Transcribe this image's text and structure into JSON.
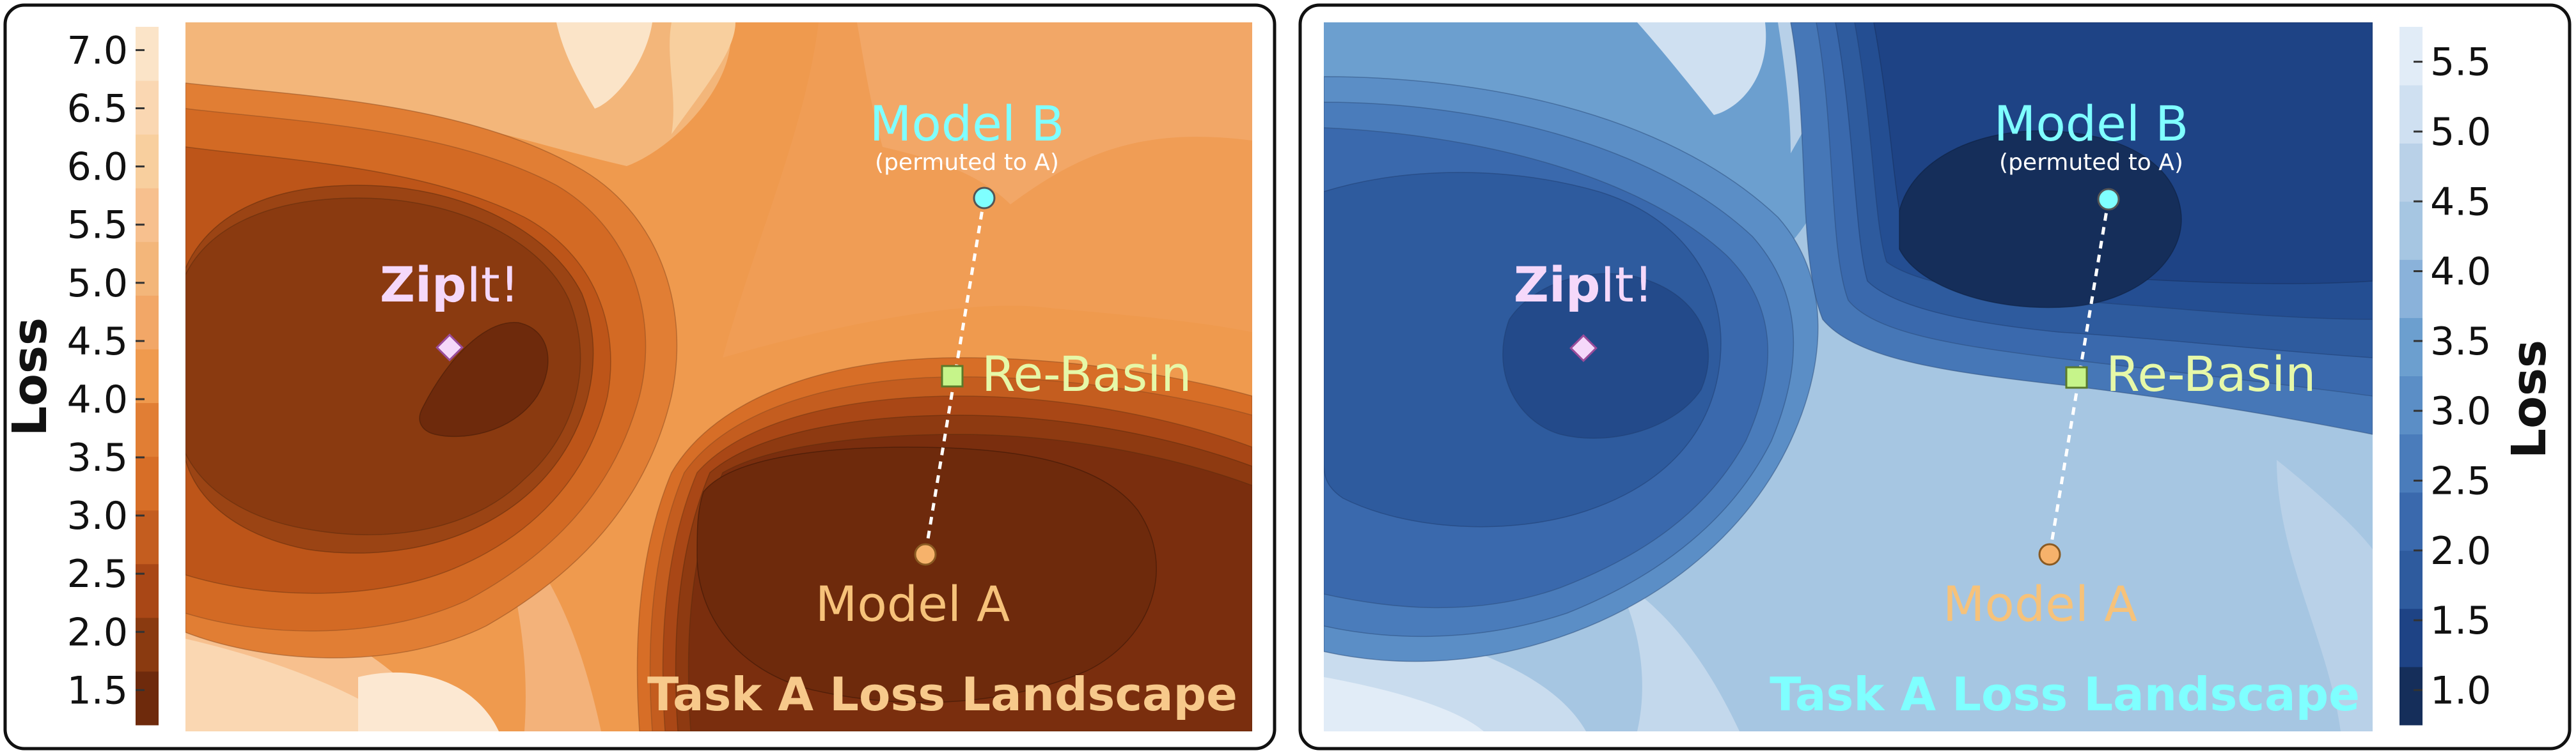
{
  "chart_data": [
    {
      "type": "contour",
      "title": "Task A Loss Landscape",
      "colorbar": {
        "label": "Loss",
        "position": "left",
        "range": [
          1.2,
          7.2
        ],
        "ticks": [
          "7.0",
          "6.5",
          "6.0",
          "5.5",
          "5.0",
          "4.5",
          "4.0",
          "3.5",
          "3.0",
          "2.5",
          "2.0",
          "1.5"
        ],
        "colormap": "orange"
      },
      "points": [
        {
          "name": "Model A",
          "color": "#F6B26B",
          "marker": "circle"
        },
        {
          "name": "Model B",
          "sublabel": "(permuted to A)",
          "color": "#7FFFFF",
          "marker": "circle"
        },
        {
          "name": "Re-Basin",
          "color": "#C6F48A",
          "marker": "square"
        },
        {
          "name_bold": "Zip",
          "name_rest": "It!",
          "color": "#F5D8FA",
          "marker": "diamond"
        }
      ],
      "title_color": "#F7C98B"
    },
    {
      "type": "contour",
      "title": "Task A Loss Landscape",
      "colorbar": {
        "label": "Loss",
        "position": "right",
        "range": [
          0.75,
          5.75
        ],
        "ticks": [
          "5.5",
          "5.0",
          "4.5",
          "4.0",
          "3.5",
          "3.0",
          "2.5",
          "2.0",
          "1.5",
          "1.0"
        ],
        "colormap": "blue"
      },
      "points": [
        {
          "name": "Model A",
          "color": "#F6B26B",
          "marker": "circle"
        },
        {
          "name": "Model B",
          "sublabel": "(permuted to A)",
          "color": "#7FFFFF",
          "marker": "circle"
        },
        {
          "name": "Re-Basin",
          "color": "#C6F48A",
          "marker": "square"
        },
        {
          "name_bold": "Zip",
          "name_rest": "It!",
          "color": "#F5D8FA",
          "marker": "diamond"
        }
      ],
      "title_color": "#7FFFFF"
    }
  ]
}
